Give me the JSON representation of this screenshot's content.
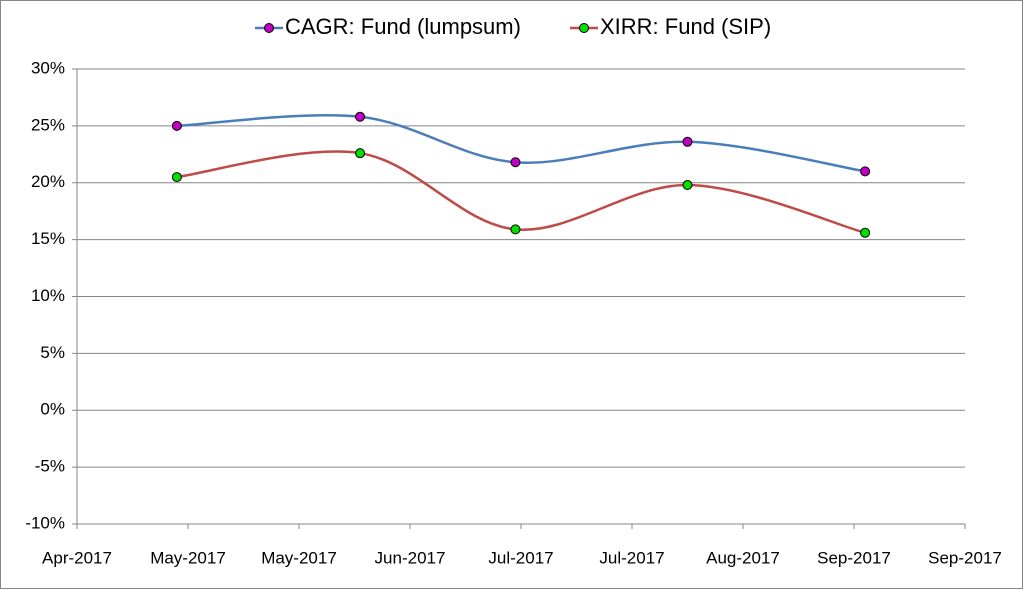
{
  "chart_data": {
    "type": "line",
    "x": [
      42863,
      42896,
      42924,
      42955,
      42987
    ],
    "series": [
      {
        "name": "CAGR: Fund (lumpsum)",
        "color": "#4a7ebb",
        "marker_color": "#c000c0",
        "values": [
          25.0,
          25.8,
          21.8,
          23.6,
          21.0
        ]
      },
      {
        "name": "XIRR: Fund (SIP)",
        "color": "#be4b48",
        "marker_color": "#00e000",
        "values": [
          20.5,
          22.6,
          15.9,
          19.8,
          15.6
        ]
      }
    ],
    "smooth": true,
    "xlim": [
      42845,
      43005
    ],
    "xticks": [
      {
        "value": 42845,
        "label": "Apr-2017"
      },
      {
        "value": 42865,
        "label": "May-2017"
      },
      {
        "value": 42885,
        "label": "May-2017"
      },
      {
        "value": 42905,
        "label": "Jun-2017"
      },
      {
        "value": 42925,
        "label": "Jul-2017"
      },
      {
        "value": 42945,
        "label": "Jul-2017"
      },
      {
        "value": 42965,
        "label": "Aug-2017"
      },
      {
        "value": 42985,
        "label": "Sep-2017"
      },
      {
        "value": 43005,
        "label": "Sep-2017"
      }
    ],
    "ylim": [
      -10,
      30
    ],
    "yticks": [
      {
        "value": -10,
        "label": "-10%"
      },
      {
        "value": -5,
        "label": "-5%"
      },
      {
        "value": 0,
        "label": "0%"
      },
      {
        "value": 5,
        "label": "5%"
      },
      {
        "value": 10,
        "label": "10%"
      },
      {
        "value": 15,
        "label": "15%"
      },
      {
        "value": 20,
        "label": "20%"
      },
      {
        "value": 25,
        "label": "25%"
      },
      {
        "value": 30,
        "label": "30%"
      }
    ],
    "grid": true,
    "legend": "top"
  }
}
